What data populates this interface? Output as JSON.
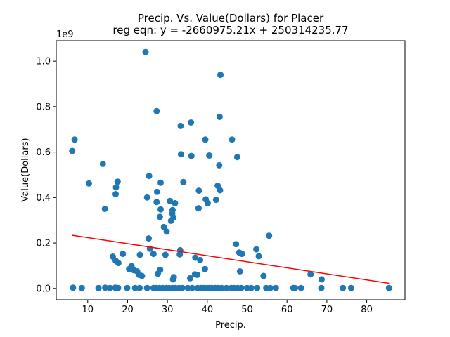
{
  "chart_data": {
    "type": "scatter",
    "title_line1": "Precip. Vs. Value(Dollars) for Placer",
    "title_line2": "reg eqn: y = -2660975.21x + 250314235.77",
    "xlabel": "Precip.",
    "ylabel": "Value(Dollars)",
    "y_offset_label": "1e9",
    "xlim": [
      2.1,
      89.6
    ],
    "ylim": [
      -0.05,
      1.09
    ],
    "x_ticks": [
      10,
      20,
      30,
      40,
      50,
      60,
      70,
      80
    ],
    "x_tick_labels": [
      "10",
      "20",
      "30",
      "40",
      "50",
      "60",
      "70",
      "80"
    ],
    "y_ticks": [
      0.0,
      0.2,
      0.4,
      0.6,
      0.8,
      1.0
    ],
    "y_tick_labels": [
      "0.0",
      "0.2",
      "0.4",
      "0.6",
      "0.8",
      "1.0"
    ],
    "marker_color": "#1f77b4",
    "regression": {
      "slope_in_1e9": -0.00266097521,
      "intercept_in_1e9": 0.25031423577,
      "x_start": 6.0,
      "x_end": 85.6,
      "color": "#ff0000"
    },
    "points": [
      [
        24.5,
        1.04
      ],
      [
        43.3,
        0.94
      ],
      [
        27.3,
        0.78
      ],
      [
        43.1,
        0.755
      ],
      [
        33.3,
        0.715
      ],
      [
        35.9,
        0.73
      ],
      [
        6.7,
        0.655
      ],
      [
        39.5,
        0.655
      ],
      [
        46.2,
        0.655
      ],
      [
        6.1,
        0.605
      ],
      [
        33.4,
        0.59
      ],
      [
        36.0,
        0.583
      ],
      [
        40.5,
        0.585
      ],
      [
        47.5,
        0.578
      ],
      [
        13.8,
        0.548
      ],
      [
        43.0,
        0.542
      ],
      [
        25.4,
        0.495
      ],
      [
        17.5,
        0.47
      ],
      [
        10.3,
        0.462
      ],
      [
        34.0,
        0.468
      ],
      [
        28.3,
        0.465
      ],
      [
        42.6,
        0.452
      ],
      [
        17.1,
        0.445
      ],
      [
        43.2,
        0.432
      ],
      [
        37.9,
        0.43
      ],
      [
        27.4,
        0.425
      ],
      [
        17.0,
        0.415
      ],
      [
        24.9,
        0.4
      ],
      [
        30.6,
        0.385
      ],
      [
        27.3,
        0.38
      ],
      [
        31.9,
        0.375
      ],
      [
        39.6,
        0.392
      ],
      [
        42.2,
        0.39
      ],
      [
        40.1,
        0.375
      ],
      [
        14.3,
        0.35
      ],
      [
        28.3,
        0.348
      ],
      [
        31.3,
        0.345
      ],
      [
        37.8,
        0.353
      ],
      [
        31.2,
        0.33
      ],
      [
        28.1,
        0.315
      ],
      [
        31.5,
        0.312
      ],
      [
        30.9,
        0.298
      ],
      [
        29.1,
        0.27
      ],
      [
        29.8,
        0.25
      ],
      [
        55.5,
        0.232
      ],
      [
        25.3,
        0.22
      ],
      [
        47.2,
        0.195
      ],
      [
        25.6,
        0.175
      ],
      [
        52.3,
        0.172
      ],
      [
        33.2,
        0.168
      ],
      [
        48.0,
        0.158
      ],
      [
        48.7,
        0.152
      ],
      [
        18.8,
        0.152
      ],
      [
        23.1,
        0.148
      ],
      [
        26.5,
        0.152
      ],
      [
        33.1,
        0.15
      ],
      [
        29.5,
        0.148
      ],
      [
        16.3,
        0.14
      ],
      [
        52.9,
        0.142
      ],
      [
        17.0,
        0.122
      ],
      [
        37.0,
        0.135
      ],
      [
        38.2,
        0.125
      ],
      [
        17.7,
        0.112
      ],
      [
        21.0,
        0.098
      ],
      [
        20.4,
        0.085
      ],
      [
        21.6,
        0.08
      ],
      [
        39.4,
        0.085
      ],
      [
        22.4,
        0.075
      ],
      [
        28.2,
        0.082
      ],
      [
        48.2,
        0.075
      ],
      [
        27.6,
        0.065
      ],
      [
        22.9,
        0.06
      ],
      [
        36.9,
        0.062
      ],
      [
        37.5,
        0.06
      ],
      [
        65.9,
        0.062
      ],
      [
        54.1,
        0.055
      ],
      [
        23.6,
        0.055
      ],
      [
        31.6,
        0.05
      ],
      [
        35.7,
        0.045
      ],
      [
        31.4,
        0.04
      ],
      [
        68.7,
        0.04
      ],
      [
        6.3,
        0.003
      ],
      [
        8.5,
        0.002
      ],
      [
        12.7,
        0.002
      ],
      [
        14.4,
        0.003
      ],
      [
        15.6,
        0.002
      ],
      [
        16.9,
        0.003
      ],
      [
        17.6,
        0.002
      ],
      [
        19.9,
        0.002
      ],
      [
        21.9,
        0.002
      ],
      [
        23.0,
        0.002
      ],
      [
        24.9,
        0.002
      ],
      [
        26.5,
        0.002
      ],
      [
        27.2,
        0.002
      ],
      [
        28.0,
        0.002
      ],
      [
        28.8,
        0.002
      ],
      [
        29.7,
        0.002
      ],
      [
        30.4,
        0.002
      ],
      [
        31.2,
        0.002
      ],
      [
        32.0,
        0.002
      ],
      [
        32.9,
        0.002
      ],
      [
        33.7,
        0.002
      ],
      [
        35.1,
        0.002
      ],
      [
        36.2,
        0.002
      ],
      [
        37.6,
        0.002
      ],
      [
        38.4,
        0.002
      ],
      [
        39.1,
        0.002
      ],
      [
        39.9,
        0.002
      ],
      [
        40.5,
        0.002
      ],
      [
        41.2,
        0.002
      ],
      [
        42.0,
        0.002
      ],
      [
        42.8,
        0.002
      ],
      [
        43.6,
        0.002
      ],
      [
        44.8,
        0.002
      ],
      [
        46.0,
        0.002
      ],
      [
        46.7,
        0.002
      ],
      [
        47.6,
        0.002
      ],
      [
        48.5,
        0.002
      ],
      [
        50.0,
        0.002
      ],
      [
        51.0,
        0.002
      ],
      [
        52.5,
        0.002
      ],
      [
        54.8,
        0.002
      ],
      [
        55.8,
        0.002
      ],
      [
        57.2,
        0.002
      ],
      [
        61.6,
        0.002
      ],
      [
        62.0,
        0.002
      ],
      [
        63.5,
        0.002
      ],
      [
        68.6,
        0.002
      ],
      [
        74.0,
        0.002
      ],
      [
        76.1,
        0.002
      ],
      [
        85.6,
        0.002
      ]
    ]
  }
}
